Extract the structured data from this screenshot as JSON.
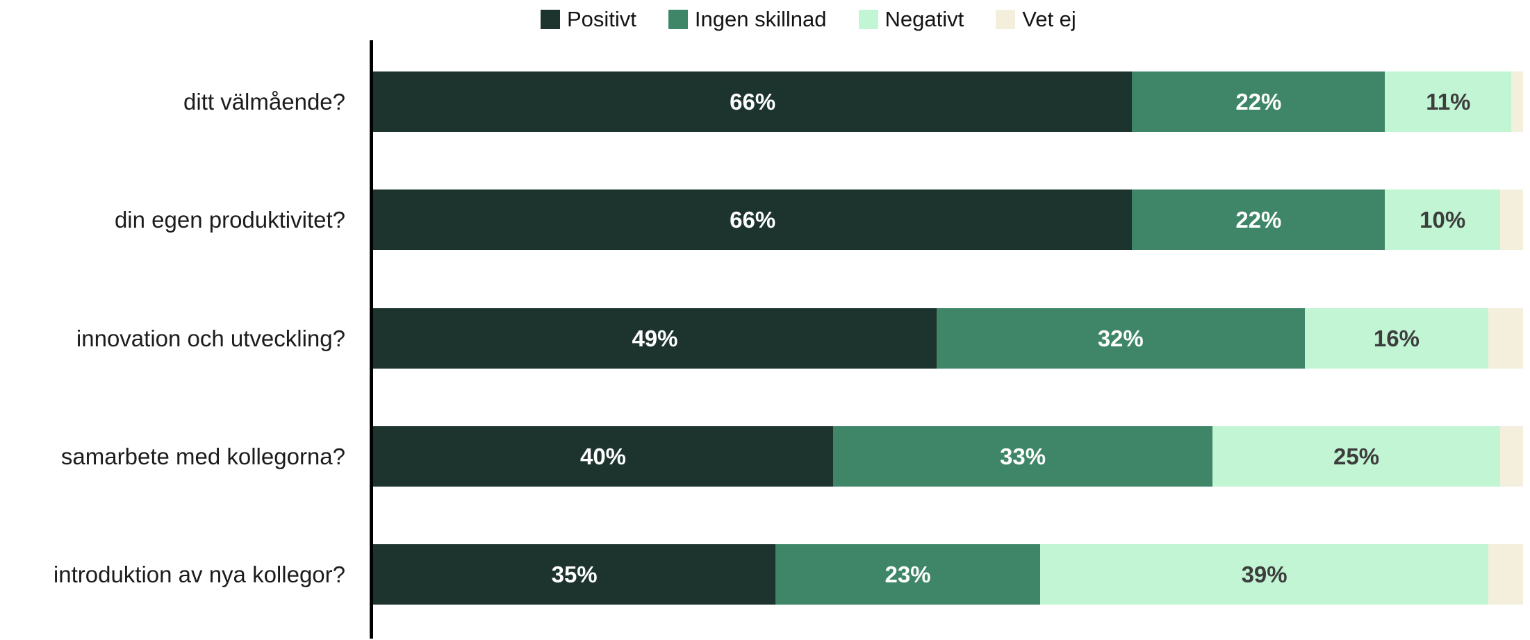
{
  "chart_data": {
    "type": "bar",
    "orientation": "horizontal",
    "stacked": true,
    "unit": "%",
    "title": "",
    "xlabel": "",
    "ylabel": "",
    "xlim": [
      0,
      100
    ],
    "grid": false,
    "legend_position": "top",
    "axis_color": "#000000",
    "categories": [
      "ditt välmående?",
      "din egen produktivitet?",
      "innovation och utveckling?",
      "samarbete med kollegorna?",
      "introduktion av nya kollegor?"
    ],
    "series": [
      {
        "name": "Positivt",
        "color": "#1d342e",
        "label_color": "#ffffff",
        "show_labels": true,
        "values": [
          66,
          66,
          49,
          40,
          35
        ]
      },
      {
        "name": "Ingen skillnad",
        "color": "#3e8667",
        "label_color": "#ffffff",
        "show_labels": true,
        "values": [
          22,
          22,
          32,
          33,
          23
        ]
      },
      {
        "name": "Negativt",
        "color": "#c2f5d4",
        "label_color": "#3d3d3d",
        "show_labels": true,
        "values": [
          11,
          10,
          16,
          25,
          39
        ]
      },
      {
        "name": "Vet ej",
        "color": "#f4eedd",
        "label_color": "#3d3d3d",
        "show_labels": false,
        "values": [
          1,
          2,
          3,
          2,
          3
        ]
      }
    ]
  }
}
